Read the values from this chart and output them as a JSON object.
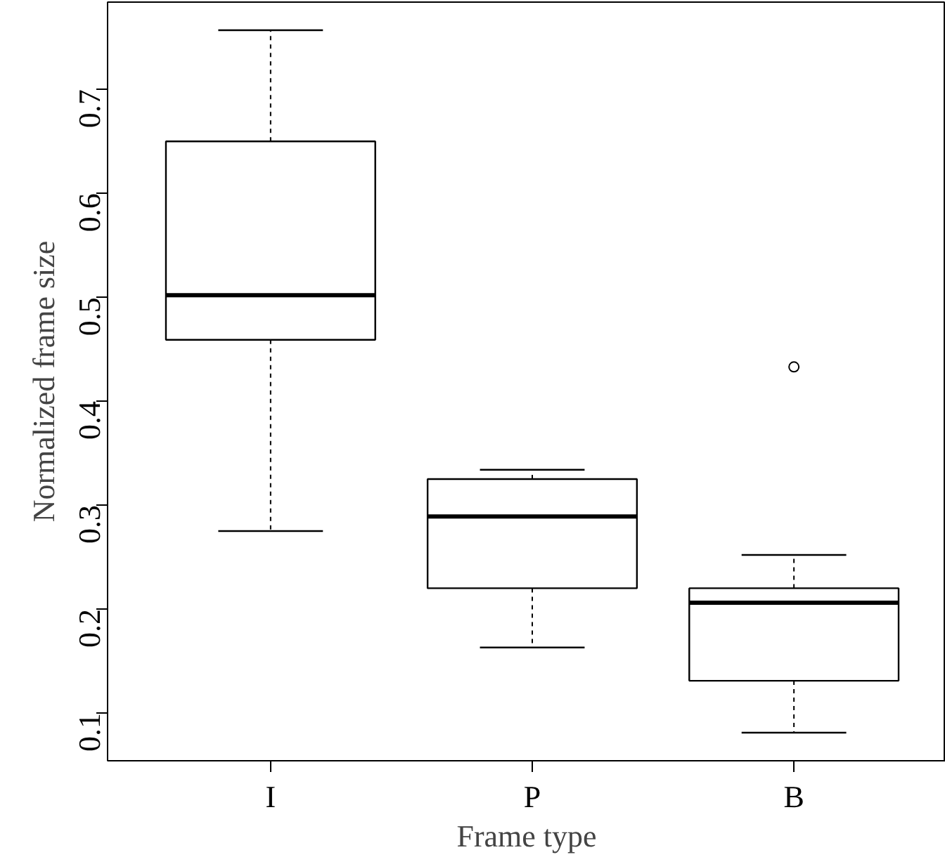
{
  "chart_data": {
    "type": "box",
    "xlabel": "Frame type",
    "ylabel": "Normalized frame size",
    "categories": [
      "I",
      "P",
      "B"
    ],
    "boxes": [
      {
        "low": 0.275,
        "q1": 0.459,
        "median": 0.502,
        "q3": 0.65,
        "high": 0.757
      },
      {
        "low": 0.163,
        "q1": 0.22,
        "median": 0.289,
        "q3": 0.325,
        "high": 0.334
      },
      {
        "low": 0.081,
        "q1": 0.131,
        "median": 0.206,
        "q3": 0.22,
        "high": 0.252,
        "outliers": [
          0.433
        ]
      }
    ],
    "ylim": [
      0.054,
      0.784
    ],
    "yticks": [
      0.1,
      0.2,
      0.3,
      0.4,
      0.5,
      0.6,
      0.7
    ],
    "grid": false
  }
}
